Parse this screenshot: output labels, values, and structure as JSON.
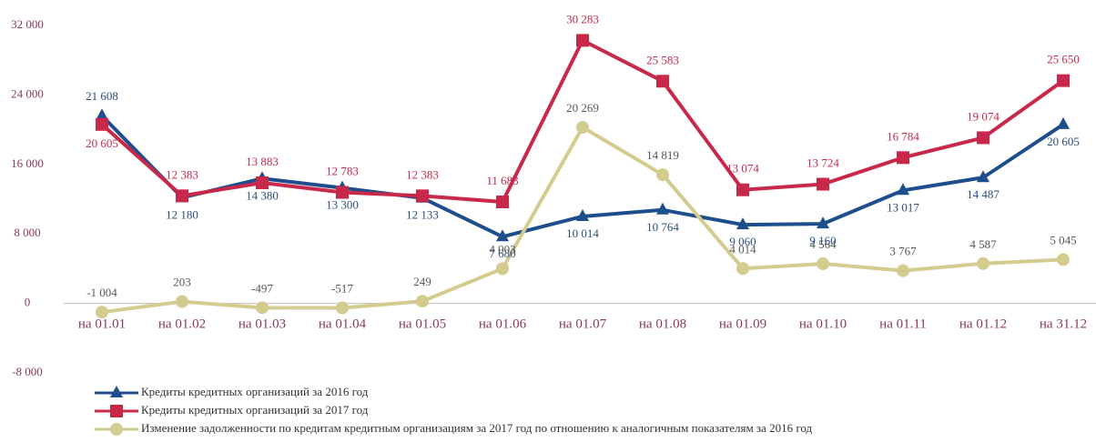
{
  "chart_data": {
    "type": "line",
    "categories": [
      "на 01.01",
      "на 01.02",
      "на 01.03",
      "на 01.04",
      "на 01.05",
      "на 01.06",
      "на 01.07",
      "на 01.08",
      "на 01.09",
      "на 01.10",
      "на 01.11",
      "на 01.12",
      "на 31.12"
    ],
    "series": [
      {
        "name": "Кредиты кредитных организаций за 2016 год",
        "color": "#1f4e8c",
        "marker": "triangle",
        "values": [
          21608,
          12180,
          14380,
          13300,
          12133,
          7680,
          10014,
          10764,
          9060,
          9160,
          13017,
          14487,
          20605
        ],
        "value_labels": [
          "21 608",
          "12 180",
          "14 380",
          "13 300",
          "12 133",
          "7 680",
          "10 014",
          "10 764",
          "9 060",
          "9 160",
          "13 017",
          "14 487",
          "20 605"
        ]
      },
      {
        "name": "Кредиты кредитных организаций за 2017 год",
        "color": "#c8284a",
        "marker": "square",
        "values": [
          20605,
          12383,
          13883,
          12783,
          12383,
          11683,
          30283,
          25583,
          13074,
          13724,
          16784,
          19074,
          25650
        ],
        "value_labels": [
          "20 605",
          "12 383",
          "13 883",
          "12 783",
          "12 383",
          "11 683",
          "30 283",
          "25 583",
          "13 074",
          "13 724",
          "16 784",
          "19 074",
          "25 650"
        ]
      },
      {
        "name": "Изменение задолженности по кредитам кредитным организациям за 2017 год по отношению к аналогичным показателям за 2016 год",
        "color": "#d4cb8e",
        "marker": "circle",
        "values": [
          -1004,
          203,
          -497,
          -517,
          249,
          4003,
          20269,
          14819,
          4014,
          4564,
          3767,
          4587,
          5045
        ],
        "value_labels": [
          "-1 004",
          "203",
          "-497",
          "-517",
          "249",
          "4 003",
          "20 269",
          "14 819",
          "4 014",
          "4 564",
          "3 767",
          "4 587",
          "5 045"
        ]
      }
    ],
    "ylim": [
      -8000,
      32000
    ],
    "yticks": [
      {
        "value": -8000,
        "label": "-8 000"
      },
      0,
      {
        "value": 8000,
        "label": "8 000"
      },
      {
        "value": 16000,
        "label": "16 000"
      },
      {
        "value": 24000,
        "label": "24 000"
      },
      {
        "value": 32000,
        "label": "32 000"
      }
    ],
    "grid": false
  }
}
